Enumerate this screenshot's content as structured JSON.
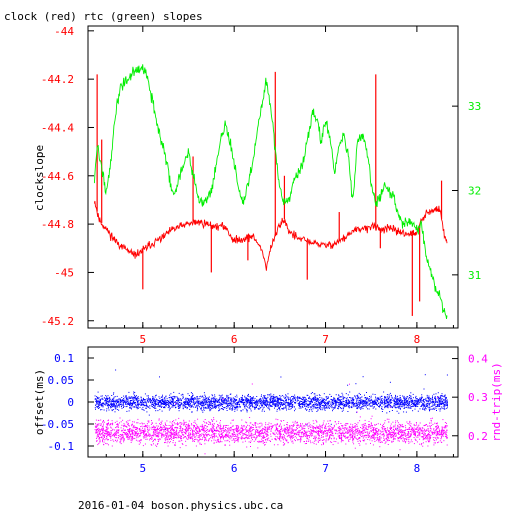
{
  "title": "clock (red) rtc (green) slopes",
  "footer": "2016-01-04 boson.physics.ubc.ca",
  "colors": {
    "clock": "#ff0000",
    "rtc": "#00ee00",
    "offset": "#0000ff",
    "rndtrip": "#ff00ff",
    "frame": "#000000",
    "text": "#000000"
  },
  "chart_data": [
    {
      "type": "line",
      "ylabel": "clockslope",
      "y2label": "",
      "xlim": [
        4.4,
        8.45
      ],
      "ylim": [
        -45.23,
        -43.98
      ],
      "y2lim": [
        30.37,
        33.95
      ],
      "x_ticks": [
        "5",
        "6",
        "7",
        "8"
      ],
      "y_ticks": [
        "-44",
        "-44.2",
        "-44.4",
        "-44.6",
        "-44.8",
        "-45",
        "-45.2"
      ],
      "y2_ticks": [
        "31",
        "32",
        "33"
      ],
      "series": [
        {
          "name": "clock",
          "color": "#ff0000",
          "points": [
            [
              4.47,
              -44.7
            ],
            [
              4.52,
              -44.78
            ],
            [
              4.6,
              -44.82
            ],
            [
              4.7,
              -44.87
            ],
            [
              4.8,
              -44.9
            ],
            [
              4.9,
              -44.93
            ],
            [
              5.0,
              -44.91
            ],
            [
              5.1,
              -44.88
            ],
            [
              5.2,
              -44.86
            ],
            [
              5.3,
              -44.83
            ],
            [
              5.4,
              -44.81
            ],
            [
              5.5,
              -44.8
            ],
            [
              5.6,
              -44.79
            ],
            [
              5.7,
              -44.8
            ],
            [
              5.8,
              -44.81
            ],
            [
              5.9,
              -44.81
            ],
            [
              6.0,
              -44.87
            ],
            [
              6.1,
              -44.86
            ],
            [
              6.2,
              -44.85
            ],
            [
              6.3,
              -44.9
            ],
            [
              6.35,
              -44.98
            ],
            [
              6.4,
              -44.9
            ],
            [
              6.5,
              -44.8
            ],
            [
              6.55,
              -44.78
            ],
            [
              6.6,
              -44.83
            ],
            [
              6.7,
              -44.86
            ],
            [
              6.8,
              -44.87
            ],
            [
              6.9,
              -44.88
            ],
            [
              7.0,
              -44.89
            ],
            [
              7.1,
              -44.88
            ],
            [
              7.2,
              -44.86
            ],
            [
              7.3,
              -44.83
            ],
            [
              7.4,
              -44.82
            ],
            [
              7.5,
              -44.81
            ],
            [
              7.6,
              -44.82
            ],
            [
              7.7,
              -44.82
            ],
            [
              7.8,
              -44.83
            ],
            [
              7.9,
              -44.84
            ],
            [
              8.0,
              -44.84
            ],
            [
              8.05,
              -44.78
            ],
            [
              8.1,
              -44.76
            ],
            [
              8.2,
              -44.74
            ],
            [
              8.25,
              -44.74
            ],
            [
              8.3,
              -44.84
            ],
            [
              8.33,
              -44.88
            ]
          ],
          "spikes": [
            [
              4.5,
              -44.18
            ],
            [
              4.55,
              -44.45
            ],
            [
              5.0,
              -45.07
            ],
            [
              5.55,
              -44.52
            ],
            [
              5.75,
              -45.0
            ],
            [
              6.15,
              -44.95
            ],
            [
              6.45,
              -44.17
            ],
            [
              6.55,
              -44.6
            ],
            [
              6.8,
              -45.03
            ],
            [
              7.15,
              -44.75
            ],
            [
              7.55,
              -44.18
            ],
            [
              7.6,
              -44.9
            ],
            [
              7.95,
              -45.18
            ],
            [
              8.03,
              -45.12
            ],
            [
              8.27,
              -44.62
            ]
          ]
        },
        {
          "name": "rtc",
          "color": "#00ee00",
          "axis": "right",
          "points": [
            [
              4.47,
              32.1
            ],
            [
              4.5,
              32.5
            ],
            [
              4.55,
              32.3
            ],
            [
              4.6,
              32.0
            ],
            [
              4.65,
              32.3
            ],
            [
              4.7,
              32.9
            ],
            [
              4.75,
              33.2
            ],
            [
              4.8,
              33.3
            ],
            [
              4.9,
              33.4
            ],
            [
              5.0,
              33.45
            ],
            [
              5.05,
              33.35
            ],
            [
              5.1,
              33.1
            ],
            [
              5.15,
              32.8
            ],
            [
              5.2,
              32.6
            ],
            [
              5.25,
              32.4
            ],
            [
              5.3,
              32.1
            ],
            [
              5.35,
              31.95
            ],
            [
              5.4,
              32.2
            ],
            [
              5.45,
              32.3
            ],
            [
              5.5,
              32.45
            ],
            [
              5.55,
              32.2
            ],
            [
              5.6,
              31.95
            ],
            [
              5.65,
              31.85
            ],
            [
              5.7,
              31.9
            ],
            [
              5.75,
              32.0
            ],
            [
              5.8,
              32.3
            ],
            [
              5.85,
              32.6
            ],
            [
              5.9,
              32.8
            ],
            [
              5.95,
              32.6
            ],
            [
              6.0,
              32.3
            ],
            [
              6.05,
              32.0
            ],
            [
              6.1,
              31.85
            ],
            [
              6.2,
              32.3
            ],
            [
              6.3,
              33.0
            ],
            [
              6.35,
              33.3
            ],
            [
              6.4,
              33.0
            ],
            [
              6.45,
              32.5
            ],
            [
              6.5,
              32.0
            ],
            [
              6.55,
              31.85
            ],
            [
              6.6,
              31.9
            ],
            [
              6.65,
              32.1
            ],
            [
              6.7,
              32.2
            ],
            [
              6.75,
              32.3
            ],
            [
              6.8,
              32.6
            ],
            [
              6.85,
              32.9
            ],
            [
              6.9,
              32.9
            ],
            [
              6.95,
              32.6
            ],
            [
              7.0,
              32.8
            ],
            [
              7.05,
              32.6
            ],
            [
              7.1,
              32.2
            ],
            [
              7.15,
              32.55
            ],
            [
              7.2,
              32.65
            ],
            [
              7.25,
              32.4
            ],
            [
              7.3,
              31.85
            ],
            [
              7.35,
              32.6
            ],
            [
              7.4,
              32.65
            ],
            [
              7.45,
              32.5
            ],
            [
              7.5,
              32.1
            ],
            [
              7.55,
              31.85
            ],
            [
              7.6,
              31.9
            ],
            [
              7.65,
              32.1
            ],
            [
              7.7,
              32.0
            ],
            [
              7.75,
              31.9
            ],
            [
              7.8,
              31.7
            ],
            [
              7.85,
              31.6
            ],
            [
              7.9,
              31.65
            ],
            [
              7.95,
              31.6
            ],
            [
              8.0,
              31.55
            ],
            [
              8.05,
              31.6
            ],
            [
              8.1,
              31.25
            ],
            [
              8.15,
              31.05
            ],
            [
              8.2,
              30.85
            ],
            [
              8.25,
              30.75
            ],
            [
              8.3,
              30.55
            ],
            [
              8.33,
              30.5
            ]
          ]
        }
      ]
    },
    {
      "type": "scatter",
      "ylabel": "offset(ms)",
      "y2label": "rnd-trip(ms)",
      "xlim": [
        4.4,
        8.45
      ],
      "ylim": [
        -0.125,
        0.125
      ],
      "y2lim": [
        0.145,
        0.43
      ],
      "x_ticks": [
        "5",
        "6",
        "7",
        "8"
      ],
      "y_ticks": [
        "0.1",
        "0.05",
        "0",
        "-0.05",
        "-0.1"
      ],
      "y2_ticks": [
        "0.4",
        "0.3",
        "0.2"
      ],
      "series": [
        {
          "name": "offset",
          "color": "#0000ff",
          "center": 0.0,
          "spread": 0.012,
          "x_range": [
            4.47,
            8.33
          ]
        },
        {
          "name": "rnd-trip",
          "color": "#ff00ff",
          "axis": "right",
          "center": 0.21,
          "spread": 0.02,
          "x_range": [
            4.47,
            8.33
          ]
        }
      ]
    }
  ]
}
